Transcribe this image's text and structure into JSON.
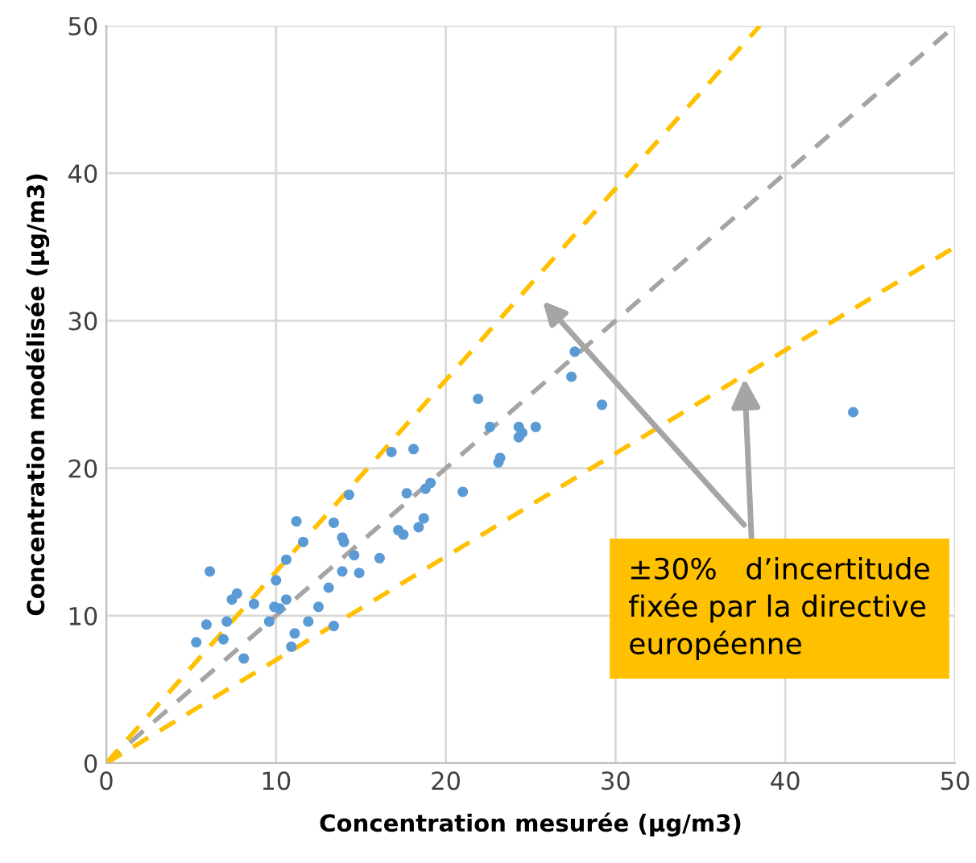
{
  "chart_data": {
    "type": "scatter",
    "xlabel": "Concentration mesurée (µg/m3)",
    "ylabel": "Concentration modélisée (µg/m3)",
    "xlim": [
      0,
      50
    ],
    "ylim": [
      0,
      50
    ],
    "xticks": [
      0,
      10,
      20,
      30,
      40,
      50
    ],
    "yticks": [
      0,
      10,
      20,
      30,
      40,
      50
    ],
    "grid": true,
    "series": [
      {
        "marker": "circle",
        "color": "#5b9bd5",
        "x": [
          5.3,
          5.9,
          6.1,
          6.9,
          7.1,
          7.4,
          7.7,
          8.1,
          8.7,
          9.6,
          9.9,
          10.0,
          10.2,
          10.6,
          10.6,
          10.9,
          11.1,
          11.2,
          11.6,
          11.9,
          12.5,
          13.1,
          13.4,
          13.4,
          13.9,
          13.9,
          14.0,
          14.3,
          14.6,
          14.9,
          16.1,
          16.8,
          17.2,
          17.5,
          17.7,
          18.1,
          18.4,
          18.7,
          18.8,
          19.1,
          21.0,
          21.9,
          22.6,
          23.1,
          23.2,
          24.3,
          24.3,
          24.5,
          25.3,
          27.4,
          27.6,
          29.2,
          44.0
        ],
        "values": [
          8.2,
          9.4,
          13.0,
          8.4,
          9.6,
          11.1,
          11.5,
          7.1,
          10.8,
          9.6,
          10.6,
          12.4,
          10.5,
          11.1,
          13.8,
          7.9,
          8.8,
          16.4,
          15.0,
          9.6,
          10.6,
          11.9,
          16.3,
          9.3,
          15.3,
          13.0,
          15.0,
          18.2,
          14.1,
          12.9,
          13.9,
          21.1,
          15.8,
          15.5,
          18.3,
          21.3,
          16.0,
          16.6,
          18.6,
          19.0,
          18.4,
          24.7,
          22.8,
          20.4,
          20.7,
          22.8,
          22.1,
          22.4,
          22.8,
          26.2,
          27.9,
          24.3,
          23.8
        ]
      },
      {
        "type": "line",
        "color": "#a5a5a5",
        "line_style": "dashed",
        "x": [
          0,
          50
        ],
        "values": [
          0,
          50
        ]
      },
      {
        "type": "line",
        "color": "#ffc000",
        "line_style": "dashed",
        "x": [
          0,
          38.5
        ],
        "values": [
          0,
          50
        ]
      },
      {
        "type": "line",
        "color": "#ffc000",
        "line_style": "dashed",
        "x": [
          0,
          50
        ],
        "values": [
          0,
          35
        ]
      }
    ],
    "annotations": [
      {
        "text": "±30%   d’incertitude\nfixée par la directive\neuropéenne",
        "x": 37.6,
        "y": 26.1
      }
    ]
  }
}
